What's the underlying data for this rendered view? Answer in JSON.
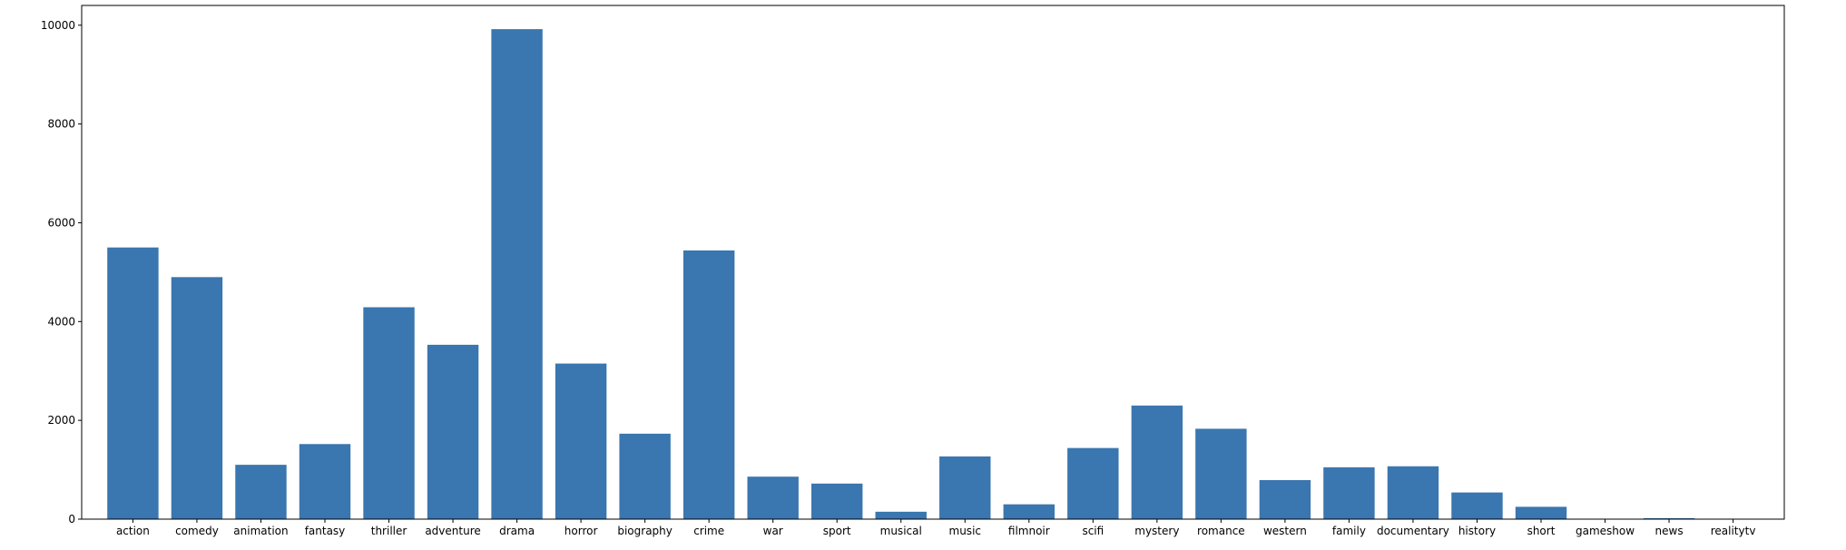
{
  "chart_data": {
    "type": "bar",
    "categories": [
      "action",
      "comedy",
      "animation",
      "fantasy",
      "thriller",
      "adventure",
      "drama",
      "horror",
      "biography",
      "crime",
      "war",
      "sport",
      "musical",
      "music",
      "filmnoir",
      "scifi",
      "mystery",
      "romance",
      "western",
      "family",
      "documentary",
      "history",
      "short",
      "gameshow",
      "news",
      "realitytv"
    ],
    "values": [
      5500,
      4900,
      1100,
      1520,
      4290,
      3530,
      9920,
      3150,
      1730,
      5440,
      860,
      720,
      150,
      1270,
      300,
      1440,
      2300,
      1830,
      790,
      1050,
      1070,
      540,
      250,
      5,
      20,
      5
    ],
    "yticks": [
      0,
      2000,
      4000,
      6000,
      8000,
      10000
    ],
    "ylim": [
      0,
      10400
    ],
    "grid": false,
    "colors": {
      "bar": "#3a76af",
      "axis": "#000000"
    }
  }
}
